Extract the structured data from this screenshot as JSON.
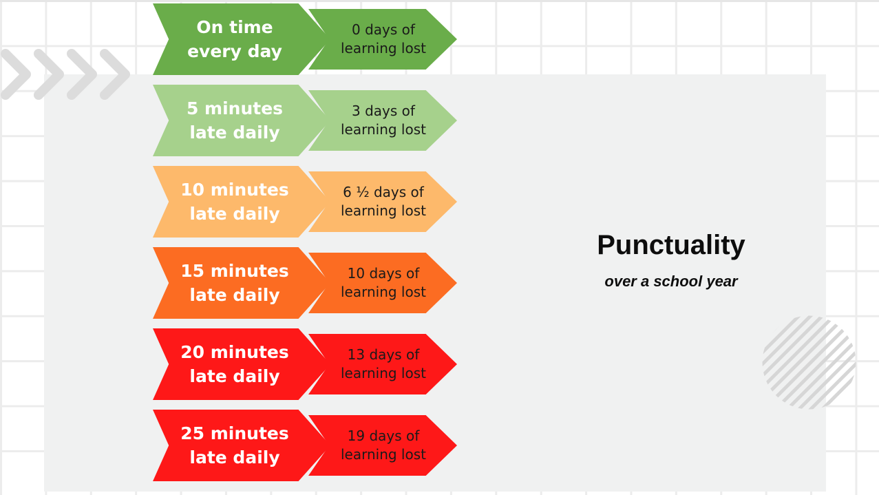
{
  "title": "Punctuality",
  "subtitle": "over a school year",
  "rows": [
    {
      "label_line1": "On time",
      "label_line2": "every day",
      "result_line1": "0 days of",
      "result_line2": "learning lost",
      "big_color": "#6aad4a",
      "small_color": "#6aad4a"
    },
    {
      "label_line1": "5 minutes",
      "label_line2": "late daily",
      "result_line1": "3 days of",
      "result_line2": "learning lost",
      "big_color": "#a6d18c",
      "small_color": "#a6d18c"
    },
    {
      "label_line1": "10 minutes",
      "label_line2": "late daily",
      "result_line1": "6 ½ days of",
      "result_line2": "learning lost",
      "big_color": "#fdb96b",
      "small_color": "#fdb96b"
    },
    {
      "label_line1": "15 minutes",
      "label_line2": "late daily",
      "result_line1": "10 days of",
      "result_line2": "learning lost",
      "big_color": "#fc6c22",
      "small_color": "#fc6c22"
    },
    {
      "label_line1": "20 minutes",
      "label_line2": "late daily",
      "result_line1": "13 days of",
      "result_line2": "learning lost",
      "big_color": "#fe1818",
      "small_color": "#fe1818"
    },
    {
      "label_line1": "25 minutes",
      "label_line2": "late daily",
      "result_line1": "19 days of",
      "result_line2": "learning lost",
      "big_color": "#fe1818",
      "small_color": "#fe1818"
    }
  ]
}
